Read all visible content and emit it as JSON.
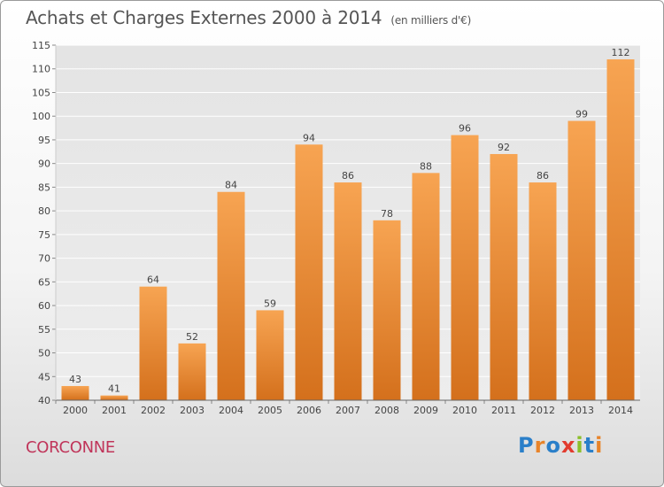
{
  "header": {
    "title": "Achats et Charges Externes 2000 à 2014",
    "subtitle": "(en milliers d'€)"
  },
  "footer": {
    "city": "CORCONNE",
    "logo_text": "Proxiti",
    "logo_colors": [
      "#2a7fc9",
      "#e8842a",
      "#2a7fc9",
      "#e23b2e",
      "#8bbf2a",
      "#2a7fc9",
      "#e8842a"
    ]
  },
  "colors": {
    "bar_light": "#f7a452",
    "bar_dark": "#d4701c",
    "city": "#c0355a",
    "text": "#555555"
  },
  "chart_data": {
    "type": "bar",
    "title": "Achats et Charges Externes 2000 à 2014",
    "subtitle": "(en milliers d'€)",
    "xlabel": "",
    "ylabel": "",
    "categories": [
      "2000",
      "2001",
      "2002",
      "2003",
      "2004",
      "2005",
      "2006",
      "2007",
      "2008",
      "2009",
      "2010",
      "2011",
      "2012",
      "2013",
      "2014"
    ],
    "values": [
      43,
      41,
      64,
      52,
      84,
      59,
      94,
      86,
      78,
      88,
      96,
      92,
      86,
      99,
      112
    ],
    "ylim": [
      40,
      115
    ],
    "yticks": [
      40,
      45,
      50,
      55,
      60,
      65,
      70,
      75,
      80,
      85,
      90,
      95,
      100,
      105,
      110,
      115
    ],
    "grid": true,
    "data_labels": true
  }
}
